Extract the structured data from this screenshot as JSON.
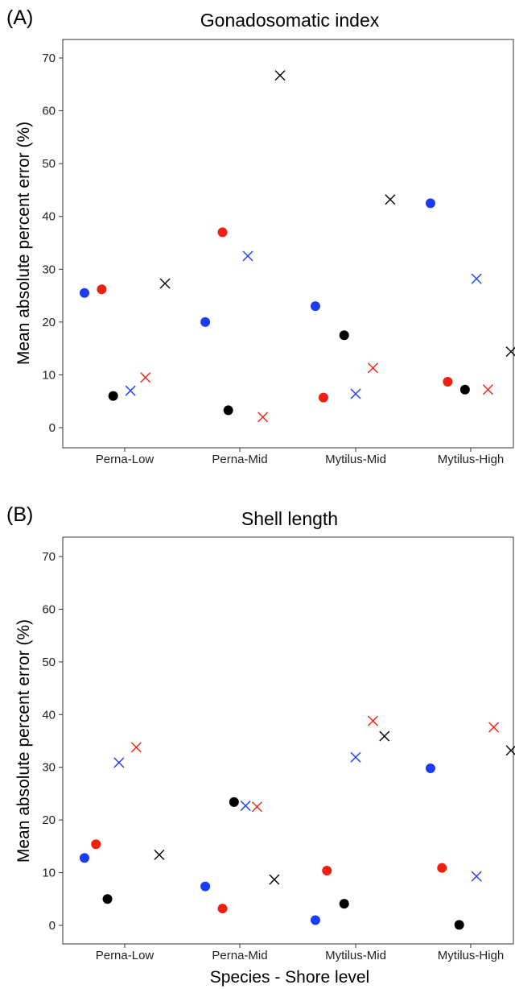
{
  "chart_data": [
    {
      "type": "scatter",
      "panel": "(A)",
      "title": "Gonadosomatic index",
      "ylabel": "Mean absolute percent error (%)",
      "xlabel": "",
      "categories": [
        "Perna-Low",
        "Perna-Mid",
        "Mytilus-Mid",
        "Mytilus-High"
      ],
      "ylim": [
        0,
        70
      ],
      "yticks": [
        0,
        10,
        20,
        30,
        40,
        50,
        60,
        70
      ],
      "grid": false,
      "legend": "none",
      "points": [
        {
          "category": "Perna-Low",
          "offset": -0.35,
          "y": 25.5,
          "marker": "circle",
          "color": "#1a3cf5"
        },
        {
          "category": "Perna-Low",
          "offset": -0.2,
          "y": 26.2,
          "marker": "circle",
          "color": "#f02010"
        },
        {
          "category": "Perna-Low",
          "offset": -0.1,
          "y": 6.0,
          "marker": "circle",
          "color": "#000000"
        },
        {
          "category": "Perna-Low",
          "offset": 0.05,
          "y": 7.0,
          "marker": "cross",
          "color": "#1a3cf5"
        },
        {
          "category": "Perna-Low",
          "offset": 0.18,
          "y": 9.5,
          "marker": "cross",
          "color": "#f02010"
        },
        {
          "category": "Perna-Low",
          "offset": 0.35,
          "y": 27.3,
          "marker": "cross",
          "color": "#000000"
        },
        {
          "category": "Perna-Mid",
          "offset": -0.3,
          "y": 20.0,
          "marker": "circle",
          "color": "#1a3cf5"
        },
        {
          "category": "Perna-Mid",
          "offset": -0.15,
          "y": 37.0,
          "marker": "circle",
          "color": "#f02010"
        },
        {
          "category": "Perna-Mid",
          "offset": -0.1,
          "y": 3.3,
          "marker": "circle",
          "color": "#000000"
        },
        {
          "category": "Perna-Mid",
          "offset": 0.07,
          "y": 32.5,
          "marker": "cross",
          "color": "#1a3cf5"
        },
        {
          "category": "Perna-Mid",
          "offset": 0.2,
          "y": 2.0,
          "marker": "cross",
          "color": "#f02010"
        },
        {
          "category": "Perna-Mid",
          "offset": 0.35,
          "y": 66.7,
          "marker": "cross",
          "color": "#000000"
        },
        {
          "category": "Mytilus-Mid",
          "offset": -0.35,
          "y": 23.0,
          "marker": "circle",
          "color": "#1a3cf5"
        },
        {
          "category": "Mytilus-Mid",
          "offset": -0.28,
          "y": 5.7,
          "marker": "circle",
          "color": "#f02010"
        },
        {
          "category": "Mytilus-Mid",
          "offset": -0.1,
          "y": 17.5,
          "marker": "circle",
          "color": "#000000"
        },
        {
          "category": "Mytilus-Mid",
          "offset": 0.0,
          "y": 6.4,
          "marker": "cross",
          "color": "#1a3cf5"
        },
        {
          "category": "Mytilus-Mid",
          "offset": 0.15,
          "y": 11.3,
          "marker": "cross",
          "color": "#f02010"
        },
        {
          "category": "Mytilus-Mid",
          "offset": 0.3,
          "y": 43.2,
          "marker": "cross",
          "color": "#000000"
        },
        {
          "category": "Mytilus-High",
          "offset": -0.35,
          "y": 42.5,
          "marker": "circle",
          "color": "#1a3cf5"
        },
        {
          "category": "Mytilus-High",
          "offset": -0.2,
          "y": 8.7,
          "marker": "circle",
          "color": "#f02010"
        },
        {
          "category": "Mytilus-High",
          "offset": -0.05,
          "y": 7.2,
          "marker": "circle",
          "color": "#000000"
        },
        {
          "category": "Mytilus-High",
          "offset": 0.05,
          "y": 28.2,
          "marker": "cross",
          "color": "#1a3cf5"
        },
        {
          "category": "Mytilus-High",
          "offset": 0.15,
          "y": 7.2,
          "marker": "cross",
          "color": "#f02010"
        },
        {
          "category": "Mytilus-High",
          "offset": 0.35,
          "y": 14.4,
          "marker": "cross",
          "color": "#000000"
        }
      ]
    },
    {
      "type": "scatter",
      "panel": "(B)",
      "title": "Shell length",
      "ylabel": "Mean absolute percent error (%)",
      "xlabel": "Species - Shore level",
      "categories": [
        "Perna-Low",
        "Perna-Mid",
        "Mytilus-Mid",
        "Mytilus-High"
      ],
      "ylim": [
        0,
        70
      ],
      "yticks": [
        0,
        10,
        20,
        30,
        40,
        50,
        60,
        70
      ],
      "grid": false,
      "legend": "none",
      "points": [
        {
          "category": "Perna-Low",
          "offset": -0.35,
          "y": 12.8,
          "marker": "circle",
          "color": "#1a3cf5"
        },
        {
          "category": "Perna-Low",
          "offset": -0.25,
          "y": 15.4,
          "marker": "circle",
          "color": "#f02010"
        },
        {
          "category": "Perna-Low",
          "offset": -0.15,
          "y": 5.0,
          "marker": "circle",
          "color": "#000000"
        },
        {
          "category": "Perna-Low",
          "offset": -0.05,
          "y": 30.9,
          "marker": "cross",
          "color": "#1a3cf5"
        },
        {
          "category": "Perna-Low",
          "offset": 0.1,
          "y": 33.8,
          "marker": "cross",
          "color": "#f02010"
        },
        {
          "category": "Perna-Low",
          "offset": 0.3,
          "y": 13.4,
          "marker": "cross",
          "color": "#000000"
        },
        {
          "category": "Perna-Mid",
          "offset": -0.3,
          "y": 7.4,
          "marker": "circle",
          "color": "#1a3cf5"
        },
        {
          "category": "Perna-Mid",
          "offset": -0.15,
          "y": 3.2,
          "marker": "circle",
          "color": "#f02010"
        },
        {
          "category": "Perna-Mid",
          "offset": -0.05,
          "y": 23.4,
          "marker": "circle",
          "color": "#000000"
        },
        {
          "category": "Perna-Mid",
          "offset": 0.05,
          "y": 22.7,
          "marker": "cross",
          "color": "#1a3cf5"
        },
        {
          "category": "Perna-Mid",
          "offset": 0.15,
          "y": 22.5,
          "marker": "cross",
          "color": "#f02010"
        },
        {
          "category": "Perna-Mid",
          "offset": 0.3,
          "y": 8.7,
          "marker": "cross",
          "color": "#000000"
        },
        {
          "category": "Mytilus-Mid",
          "offset": -0.35,
          "y": 1.0,
          "marker": "circle",
          "color": "#1a3cf5"
        },
        {
          "category": "Mytilus-Mid",
          "offset": -0.25,
          "y": 10.4,
          "marker": "circle",
          "color": "#f02010"
        },
        {
          "category": "Mytilus-Mid",
          "offset": -0.1,
          "y": 4.1,
          "marker": "circle",
          "color": "#000000"
        },
        {
          "category": "Mytilus-Mid",
          "offset": 0.0,
          "y": 31.9,
          "marker": "cross",
          "color": "#1a3cf5"
        },
        {
          "category": "Mytilus-Mid",
          "offset": 0.15,
          "y": 38.8,
          "marker": "cross",
          "color": "#f02010"
        },
        {
          "category": "Mytilus-Mid",
          "offset": 0.25,
          "y": 35.9,
          "marker": "cross",
          "color": "#000000"
        },
        {
          "category": "Mytilus-High",
          "offset": -0.35,
          "y": 29.8,
          "marker": "circle",
          "color": "#1a3cf5"
        },
        {
          "category": "Mytilus-High",
          "offset": -0.25,
          "y": 10.9,
          "marker": "circle",
          "color": "#f02010"
        },
        {
          "category": "Mytilus-High",
          "offset": -0.1,
          "y": 0.1,
          "marker": "circle",
          "color": "#000000"
        },
        {
          "category": "Mytilus-High",
          "offset": 0.05,
          "y": 9.3,
          "marker": "cross",
          "color": "#1a3cf5"
        },
        {
          "category": "Mytilus-High",
          "offset": 0.2,
          "y": 37.6,
          "marker": "cross",
          "color": "#f02010"
        },
        {
          "category": "Mytilus-High",
          "offset": 0.35,
          "y": 33.2,
          "marker": "cross",
          "color": "#000000"
        }
      ]
    }
  ]
}
